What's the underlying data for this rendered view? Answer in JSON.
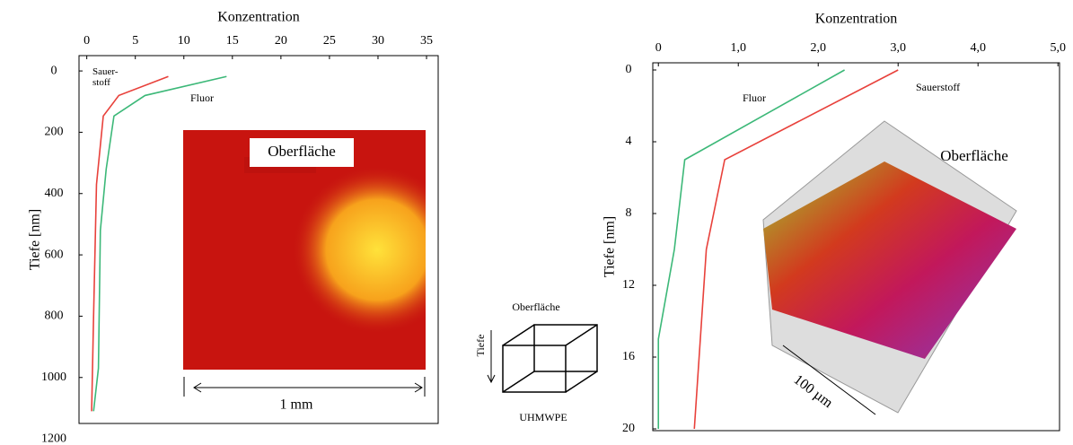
{
  "chart_data": [
    {
      "type": "line",
      "x_label": "Konzentration",
      "y_label": "Tiefe  [nm]",
      "xlim": [
        -0.8,
        36.2
      ],
      "ylim": [
        -50,
        1150
      ],
      "y_inverted": true,
      "x_axis_top": true,
      "xticks": [
        0,
        5,
        10,
        15,
        20,
        25,
        30,
        35
      ],
      "yticks": [
        0,
        200,
        400,
        600,
        800,
        1000,
        1200
      ],
      "series": [
        {
          "name": "Sauer-stoff",
          "color": "#e8413b",
          "x": [
            8.4,
            3.3,
            1.7,
            1,
            0.7,
            0.5
          ],
          "values": [
            18,
            80,
            147,
            370,
            800,
            1110
          ]
        },
        {
          "name": "Fluor",
          "color": "#3cb878",
          "x": [
            14.4,
            6,
            2.8,
            2,
            1.4,
            1.2,
            0.7
          ],
          "values": [
            18,
            80,
            147,
            320,
            520,
            970,
            1110
          ]
        }
      ],
      "inset_label": "Oberfläche",
      "scale_label": "1 mm"
    },
    {
      "type": "line",
      "x_label": "Konzentration",
      "y_label": "Tiefe  [nm]",
      "xlim": [
        -0.07,
        5.02
      ],
      "ylim": [
        -0.4,
        20.1
      ],
      "y_inverted": true,
      "x_axis_top": true,
      "xticks": [
        0,
        {
          "value": 1,
          "label": "1,0"
        },
        {
          "value": 2,
          "label": "2,0"
        },
        {
          "value": 3,
          "label": "3,0"
        },
        {
          "value": 4,
          "label": "4,0"
        },
        {
          "value": 5,
          "label": "5,0"
        }
      ],
      "yticks": [
        0,
        4,
        8,
        12,
        16,
        20
      ],
      "series": [
        {
          "name": "Fluor",
          "color": "#3cb878",
          "x": [
            2.33,
            0.33,
            0.2,
            0,
            0
          ],
          "values": [
            0,
            5,
            10,
            15,
            20
          ]
        },
        {
          "name": "Sauerstoff",
          "color": "#e8413b",
          "x": [
            3.0,
            0.83,
            0.6,
            0.45
          ],
          "values": [
            0,
            5,
            10,
            20
          ]
        }
      ],
      "inset_label": "Oberfläche",
      "scale_label": "100 µm"
    }
  ],
  "diagram": {
    "top_label": "Oberfläche",
    "side_label": "Tiefe",
    "bottom_label": "UHMWPE"
  }
}
